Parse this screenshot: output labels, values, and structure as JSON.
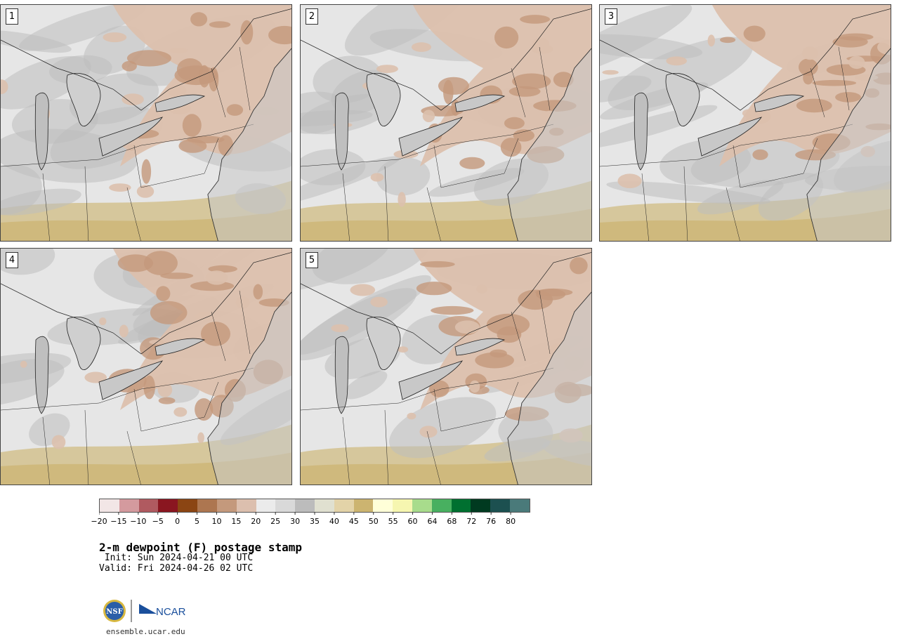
{
  "panels": [
    {
      "label": "1"
    },
    {
      "label": "2"
    },
    {
      "label": "3"
    },
    {
      "label": "4"
    },
    {
      "label": "5"
    }
  ],
  "colorbar": {
    "colors": [
      "#f2e6e6",
      "#d49a9e",
      "#b05a60",
      "#8a1620",
      "#8b4513",
      "#ad7650",
      "#c4997c",
      "#dcbfae",
      "#ebebeb",
      "#d9d9d9",
      "#bcbcbc",
      "#e0e0d0",
      "#e3d3a8",
      "#ccb470",
      "#ffffd8",
      "#f6f6b0",
      "#a8dc8c",
      "#48b060",
      "#007030",
      "#003a20",
      "#1c5050",
      "#4a7a7a"
    ],
    "ticks": [
      "−20",
      "−15",
      "−10",
      "−5",
      "0",
      "5",
      "10",
      "15",
      "20",
      "25",
      "30",
      "35",
      "40",
      "45",
      "50",
      "55",
      "60",
      "64",
      "68",
      "72",
      "76",
      "80"
    ]
  },
  "title": "2-m dewpoint (F) postage stamp",
  "init": " Init: Sun 2024-04-21 00 UTC",
  "valid": "Valid: Fri 2024-04-26 02 UTC",
  "logos": {
    "left": "NSF",
    "right": "NCAR"
  },
  "site": "ensemble.ucar.edu"
}
